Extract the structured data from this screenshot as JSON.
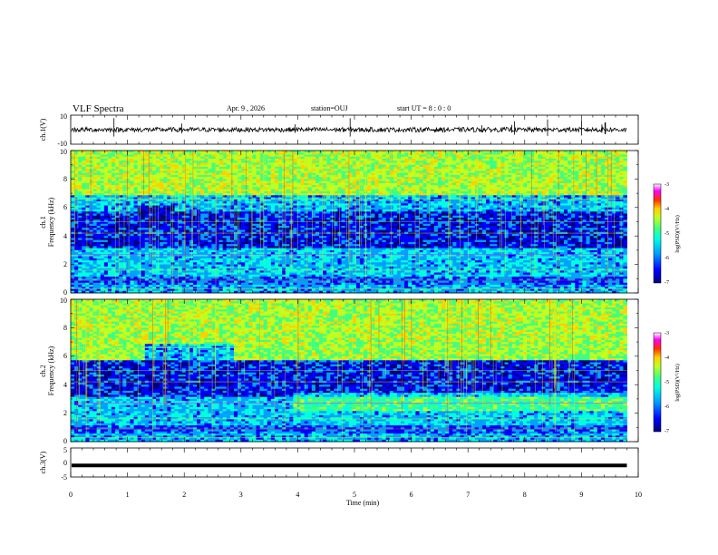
{
  "header": {
    "title": "VLF Spectra",
    "date": "Apr. 9 , 2026",
    "station": "station=OUJ",
    "start": "start UT = 8 : 0 : 0"
  },
  "colors": {
    "colormap": [
      "#00007f",
      "#0000ff",
      "#00a0ff",
      "#00ffe0",
      "#40ff80",
      "#c0ff20",
      "#ffd000",
      "#ff3000",
      "#ff00ff",
      "#ffffff"
    ]
  },
  "chart_data": [
    {
      "type": "line",
      "name": "ch1-waveform",
      "ylabel": "ch.1(V)",
      "ylim": [
        -10,
        10
      ],
      "y_ticks": [
        "10",
        "-10"
      ],
      "xlim": [
        0,
        10
      ],
      "baseline": 0,
      "level": 0
    },
    {
      "type": "heatmap",
      "name": "ch1-spectrogram",
      "ylabel_channel": "ch.1",
      "ylabel": "Frequency (kHz)",
      "ylim": [
        0,
        10
      ],
      "y_ticks": [
        "0",
        "2",
        "4",
        "6",
        "8",
        "10"
      ],
      "xlim": [
        0,
        9.8
      ],
      "colorbar": {
        "label": "log(PSD)(V²/Hz)",
        "range": [
          -7,
          -3
        ],
        "ticks": [
          "-3",
          "-4",
          "-5",
          "-6",
          "-7"
        ]
      }
    },
    {
      "type": "heatmap",
      "name": "ch2-spectrogram",
      "ylabel_channel": "ch.2",
      "ylabel": "Frequency (kHz)",
      "ylim": [
        0,
        10
      ],
      "y_ticks": [
        "0",
        "2",
        "4",
        "6",
        "8",
        "10"
      ],
      "xlim": [
        0,
        9.8
      ],
      "colorbar": {
        "label": "log(PSD)(V²/Hz)",
        "range": [
          -7,
          -3
        ],
        "ticks": [
          "-3",
          "-4",
          "-5",
          "-6",
          "-7"
        ]
      }
    },
    {
      "type": "line",
      "name": "ch3-waveform",
      "ylabel": "ch.3(V)",
      "ylim": [
        -5,
        5
      ],
      "y_ticks": [
        "5",
        "0",
        "-5"
      ],
      "xlim": [
        0,
        10
      ],
      "level": -1
    }
  ],
  "x_axis": {
    "label": "Time (min)",
    "ticks": [
      "0",
      "1",
      "2",
      "3",
      "4",
      "5",
      "6",
      "7",
      "8",
      "9",
      "10"
    ],
    "range": [
      0,
      10
    ]
  }
}
